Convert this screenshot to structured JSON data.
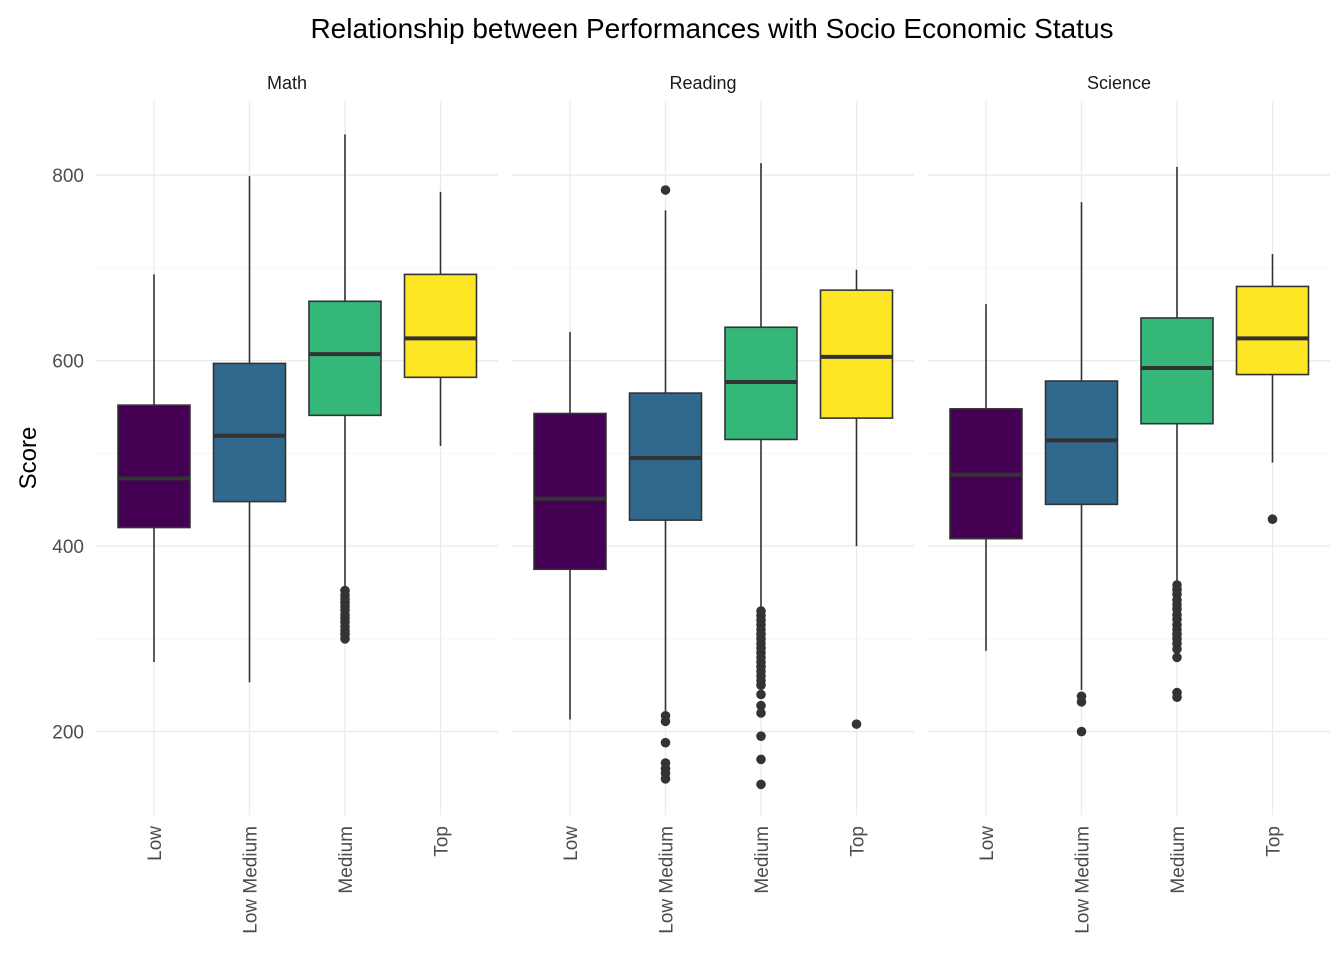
{
  "chart_data": {
    "type": "boxplot",
    "title": "Relationship between Performances with Socio Economic Status",
    "xlabel": "",
    "ylabel": "Score",
    "ylim": [
      110,
      880
    ],
    "y_ticks": [
      200,
      400,
      600,
      800
    ],
    "categories": [
      "Low",
      "Low Medium",
      "Medium",
      "Top"
    ],
    "category_colors": [
      "#440154",
      "#31688e",
      "#35b779",
      "#fde725"
    ],
    "legend": "none",
    "grid": true,
    "facets": [
      {
        "label": "Math",
        "boxes": [
          {
            "category": "Low",
            "whisker_low": 275,
            "q1": 420,
            "median": 473,
            "q3": 552,
            "whisker_high": 693,
            "outliers": []
          },
          {
            "category": "Low Medium",
            "whisker_low": 253,
            "q1": 448,
            "median": 519,
            "q3": 597,
            "whisker_high": 799,
            "outliers": []
          },
          {
            "category": "Medium",
            "whisker_low": 355,
            "q1": 541,
            "median": 607,
            "q3": 664,
            "whisker_high": 844,
            "outliers": [
              352,
              347,
              343,
              339,
              335,
              331,
              326,
              322,
              318,
              313,
              309,
              305,
              300
            ]
          },
          {
            "category": "Top",
            "whisker_low": 508,
            "q1": 582,
            "median": 624,
            "q3": 693,
            "whisker_high": 782,
            "outliers": []
          }
        ]
      },
      {
        "label": "Reading",
        "boxes": [
          {
            "category": "Low",
            "whisker_low": 213,
            "q1": 375,
            "median": 451,
            "q3": 543,
            "whisker_high": 631,
            "outliers": []
          },
          {
            "category": "Low Medium",
            "whisker_low": 222,
            "q1": 428,
            "median": 495,
            "q3": 565,
            "whisker_high": 762,
            "outliers": [
              784,
              217,
              211,
              188,
              166,
              160,
              155,
              149
            ]
          },
          {
            "category": "Medium",
            "whisker_low": 334,
            "q1": 515,
            "median": 577,
            "q3": 636,
            "whisker_high": 813,
            "outliers": [
              330,
              325,
              320,
              315,
              310,
              305,
              300,
              295,
              290,
              285,
              280,
              275,
              270,
              265,
              260,
              255,
              250,
              240,
              228,
              220,
              195,
              170,
              143
            ]
          },
          {
            "category": "Top",
            "whisker_low": 400,
            "q1": 538,
            "median": 604,
            "q3": 676,
            "whisker_high": 698,
            "outliers": [
              208
            ]
          }
        ]
      },
      {
        "label": "Science",
        "boxes": [
          {
            "category": "Low",
            "whisker_low": 287,
            "q1": 408,
            "median": 477,
            "q3": 548,
            "whisker_high": 661,
            "outliers": []
          },
          {
            "category": "Low Medium",
            "whisker_low": 245,
            "q1": 445,
            "median": 514,
            "q3": 578,
            "whisker_high": 771,
            "outliers": [
              238,
              232,
              200
            ]
          },
          {
            "category": "Medium",
            "whisker_low": 362,
            "q1": 532,
            "median": 592,
            "q3": 646,
            "whisker_high": 809,
            "outliers": [
              358,
              353,
              348,
              342,
              337,
              332,
              326,
              321,
              315,
              310,
              305,
              300,
              295,
              289,
              280,
              242,
              237
            ]
          },
          {
            "category": "Top",
            "whisker_low": 490,
            "q1": 585,
            "median": 624,
            "q3": 680,
            "whisker_high": 715,
            "outliers": [
              429
            ]
          }
        ]
      }
    ]
  }
}
